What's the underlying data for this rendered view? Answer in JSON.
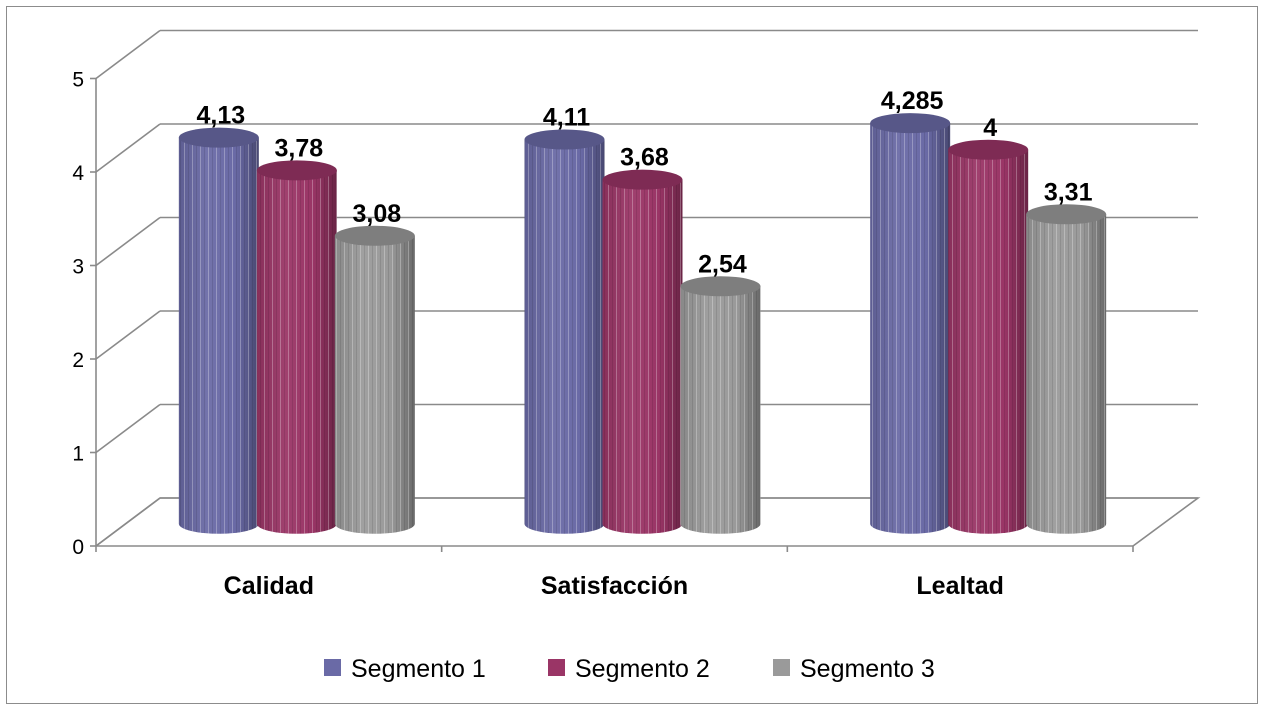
{
  "chart_data": {
    "type": "bar",
    "categories": [
      "Calidad",
      "Satisfacción",
      "Lealtad"
    ],
    "series": [
      {
        "name": "Segmento 1",
        "values": [
          4.13,
          4.11,
          4.285
        ],
        "labels": [
          "4,13",
          "4,11",
          "4,285"
        ],
        "color": "#6a6aa6"
      },
      {
        "name": "Segmento 2",
        "values": [
          3.78,
          3.68,
          4.0
        ],
        "labels": [
          "3,78",
          "3,68",
          "4"
        ],
        "color": "#9a3566"
      },
      {
        "name": "Segmento 3",
        "values": [
          3.08,
          2.54,
          3.31
        ],
        "labels": [
          "3,08",
          "2,54",
          "3,31"
        ],
        "color": "#9a9a9a"
      }
    ],
    "ylim": [
      0,
      5
    ],
    "yticks": [
      "0",
      "1",
      "2",
      "3",
      "4",
      "5"
    ],
    "grid": true,
    "legend": "bottom",
    "three_d": true
  }
}
